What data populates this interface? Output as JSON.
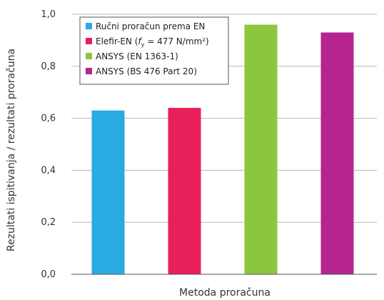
{
  "chart_data": {
    "type": "bar",
    "title": "",
    "xlabel": "Metoda proračuna",
    "ylabel": "Rezultati ispitivanja / rezultati proračuna",
    "ylim": [
      0,
      1.0
    ],
    "yticks": [
      "0,0",
      "0,2",
      "0,4",
      "0,6",
      "0,8",
      "1,0"
    ],
    "grid": true,
    "legend_position": "top-left",
    "series": [
      {
        "name": "Ručni proračun prema EN",
        "value": 0.63,
        "color": "#29abe2"
      },
      {
        "name": "Elefir-EN (fy = 477 N/mm²)",
        "value": 0.64,
        "color": "#e8205a"
      },
      {
        "name": "ANSYS (EN 1363-1)",
        "value": 0.96,
        "color": "#8cc63f"
      },
      {
        "name": "ANSYS (BS 476 Part 20)",
        "value": 0.93,
        "color": "#b5248f"
      }
    ]
  }
}
